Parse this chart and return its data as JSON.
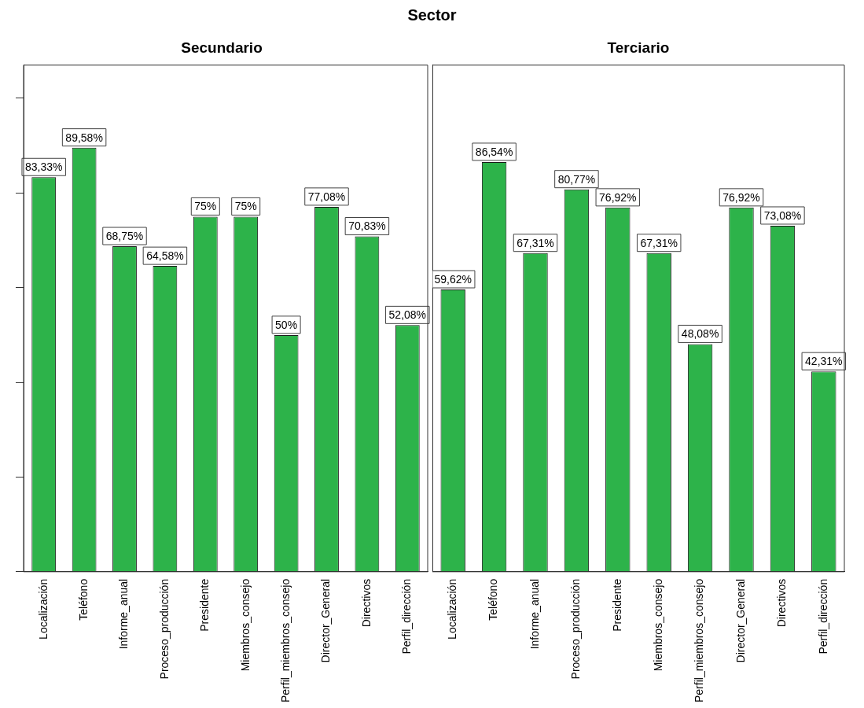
{
  "chart_data": [
    {
      "type": "bar",
      "title": "Secundario",
      "annotations": [
        "Sector"
      ],
      "categories": [
        "Localización",
        "Teléfono",
        "Informe_anual",
        "Proceso_producción",
        "Presidente",
        "Miembros_consejo",
        "Perfil_miembros_consejo",
        "Director_General",
        "Directivos",
        "Perfil_dirección"
      ],
      "values": [
        83.33,
        89.58,
        68.75,
        64.58,
        75,
        75,
        50,
        77.08,
        70.83,
        52.08
      ],
      "value_labels": [
        "83,33%",
        "89,58%",
        "68,75%",
        "64,58%",
        "75%",
        "75%",
        "50%",
        "77,08%",
        "70,83%",
        "52,08%"
      ],
      "color": "#2db34a",
      "ylim": [
        0,
        107
      ],
      "yticks": [
        {
          "value": 0,
          "label": null
        },
        {
          "value": 20,
          "label": null
        },
        {
          "value": 40,
          "label": null
        },
        {
          "value": 60,
          "label": null
        },
        {
          "value": 80,
          "label": null
        },
        {
          "value": 100,
          "label": null
        }
      ],
      "tick_labels": "x",
      "grid": false,
      "legend": false
    },
    {
      "type": "bar",
      "title": "Terciario",
      "categories": [
        "Localización",
        "Teléfono",
        "Informe_anual",
        "Proceso_producción",
        "Presidente",
        "Miembros_consejo",
        "Perfil_miembros_consejo",
        "Director_General",
        "Directivos",
        "Perfil_dirección"
      ],
      "values": [
        59.62,
        86.54,
        67.31,
        80.77,
        76.92,
        67.31,
        48.08,
        76.92,
        73.08,
        42.31
      ],
      "value_labels": [
        "59,62%",
        "86,54%",
        "67,31%",
        "80,77%",
        "76,92%",
        "67,31%",
        "48,08%",
        "76,92%",
        "73,08%",
        "42,31%"
      ],
      "color": "#2db34a",
      "ylim": [
        0,
        107
      ],
      "tick_labels": "x",
      "grid": false,
      "legend": false
    }
  ]
}
